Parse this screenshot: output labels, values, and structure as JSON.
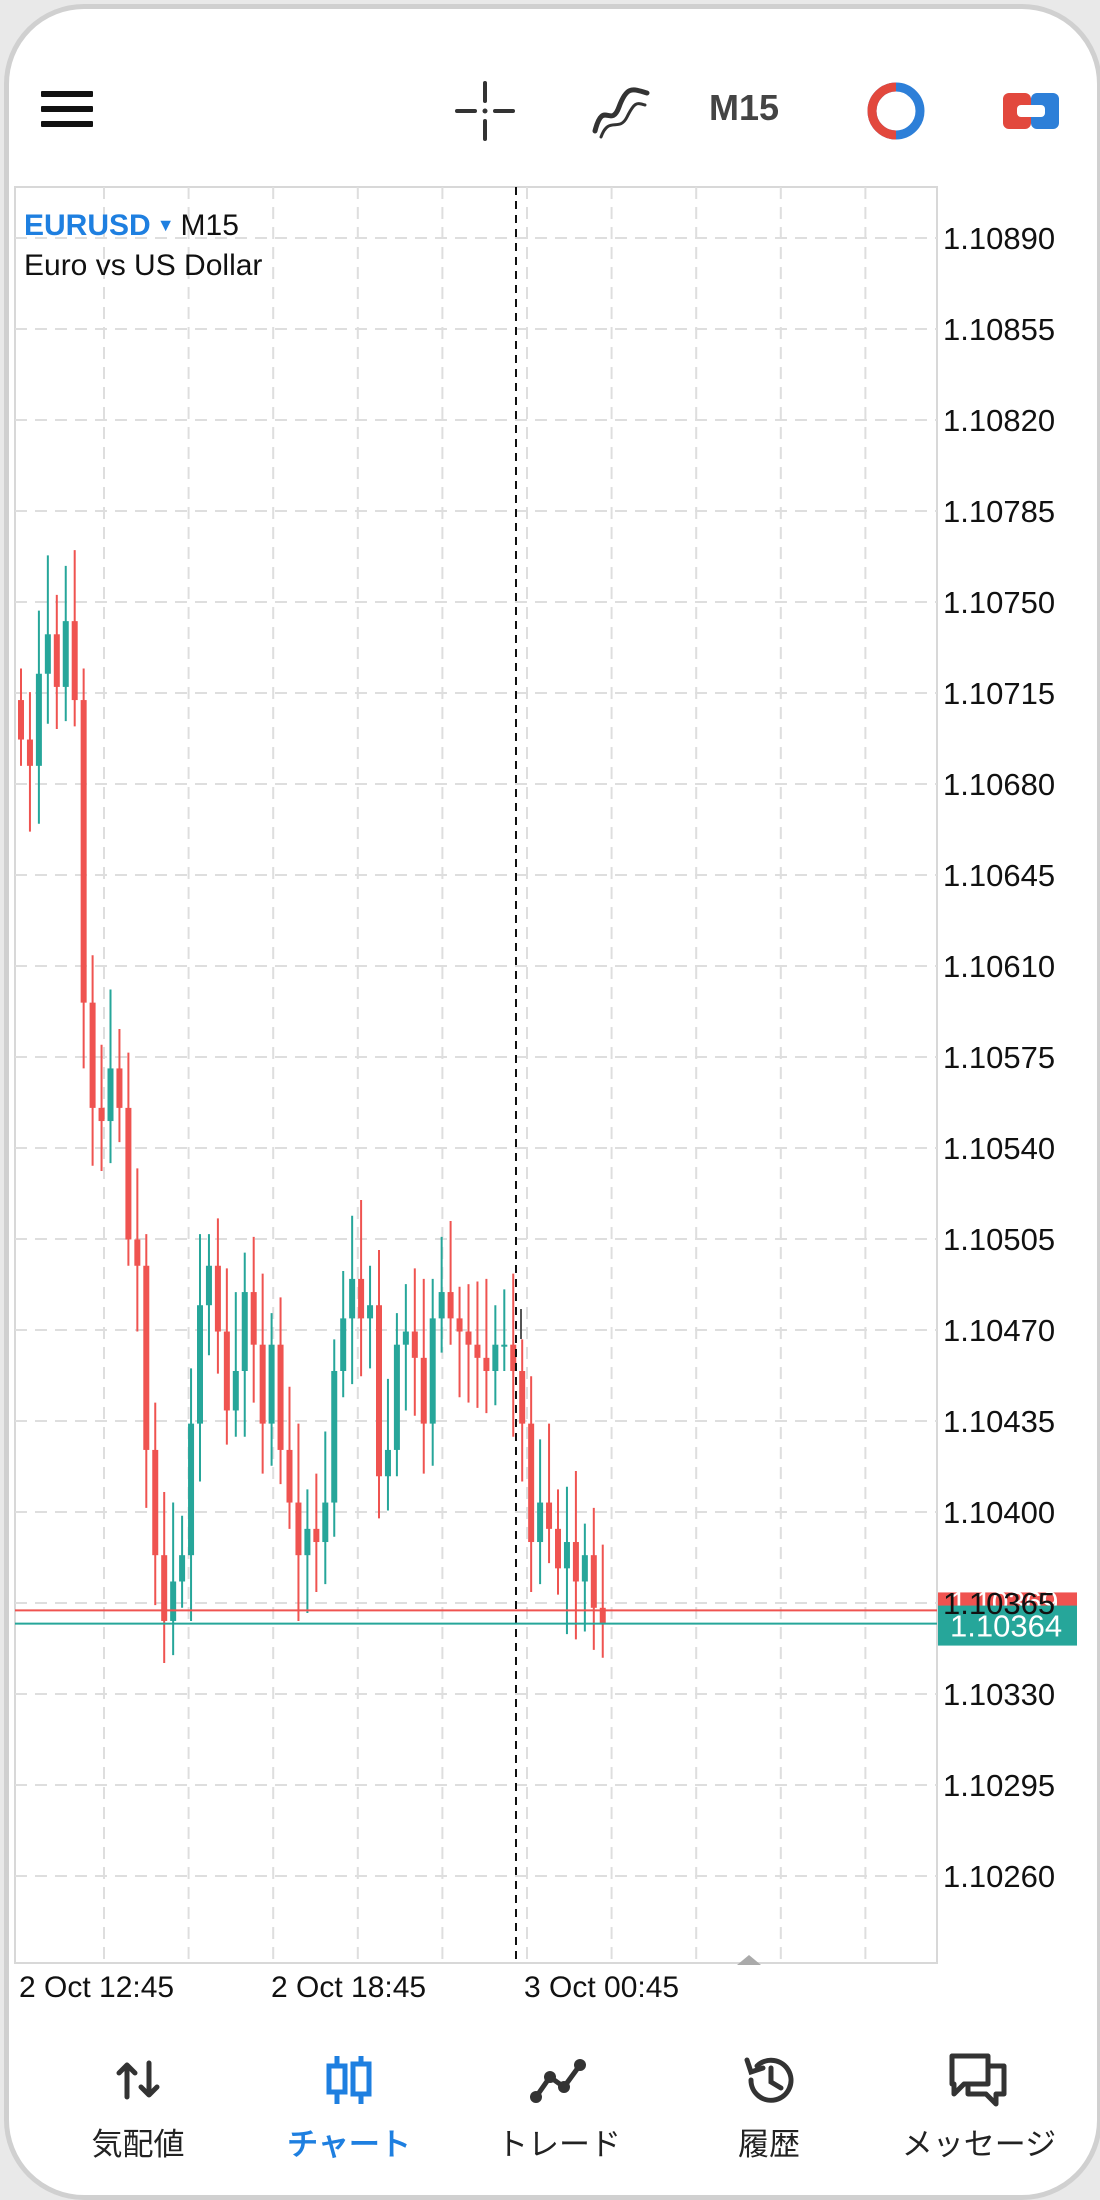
{
  "toolbar": {
    "timeframe": "M15",
    "icons": [
      "menu-icon",
      "crosshair-icon",
      "indicator-icon",
      "timeframe-label",
      "trade-clock-icon",
      "one-click-trade-icon"
    ]
  },
  "symbol": {
    "name": "EURUSD",
    "timeframe": "M15",
    "description": "Euro vs US Dollar"
  },
  "colors": {
    "bull": "#26a69a",
    "bear": "#ef5350",
    "accent": "#1e7fe0",
    "grid": "#dedede"
  },
  "chart_data": {
    "type": "candlestick",
    "yticks": [
      "1.10890",
      "1.10855",
      "1.10820",
      "1.10785",
      "1.10750",
      "1.10715",
      "1.10680",
      "1.10645",
      "1.10610",
      "1.10575",
      "1.10540",
      "1.10505",
      "1.10470",
      "1.10435",
      "1.10400",
      "1.10365",
      "1.10330",
      "1.10295",
      "1.10260"
    ],
    "ylim": [
      1.10235,
      1.1091
    ],
    "xticks": [
      "2 Oct 12:45",
      "2 Oct 18:45",
      "3 Oct 00:45"
    ],
    "bid_price": "1.10364",
    "ask_price": "1.10369",
    "candles": [
      [
        1.1072,
        1.10695,
        1.1075,
        1.1067,
        1.107,
        1.10715
      ],
      [
        1.1071,
        1.1072,
        1.10705,
        1.10745,
        1.10685,
        1.1076
      ],
      [
        1.10715,
        1.1071,
        1.107,
        1.1069,
        1.1069,
        1.1067
      ],
      [
        1.10705,
        1.10705,
        1.10695,
        1.107,
        1.1067,
        1.10655
      ],
      [
        1.10675,
        1.1072,
        1.1074,
        1.10715,
        1.1075,
        1.10765
      ],
      [
        1.10715,
        1.10715,
        1.10715,
        1.1072,
        1.1075,
        1.1076
      ],
      [
        1.10715,
        1.10735,
        1.10765,
        1.1074,
        1.107,
        1.1071
      ],
      [
        1.10735,
        1.10725,
        1.10745,
        1.10745,
        1.1072,
        1.10735
      ]
    ]
  },
  "nav": {
    "items": [
      {
        "label": "気配値",
        "icon": "quotes-icon"
      },
      {
        "label": "チャート",
        "icon": "chart-icon"
      },
      {
        "label": "トレード",
        "icon": "trade-icon"
      },
      {
        "label": "履歴",
        "icon": "history-icon"
      },
      {
        "label": "メッセージ",
        "icon": "messages-icon"
      }
    ],
    "active": "チャート"
  }
}
